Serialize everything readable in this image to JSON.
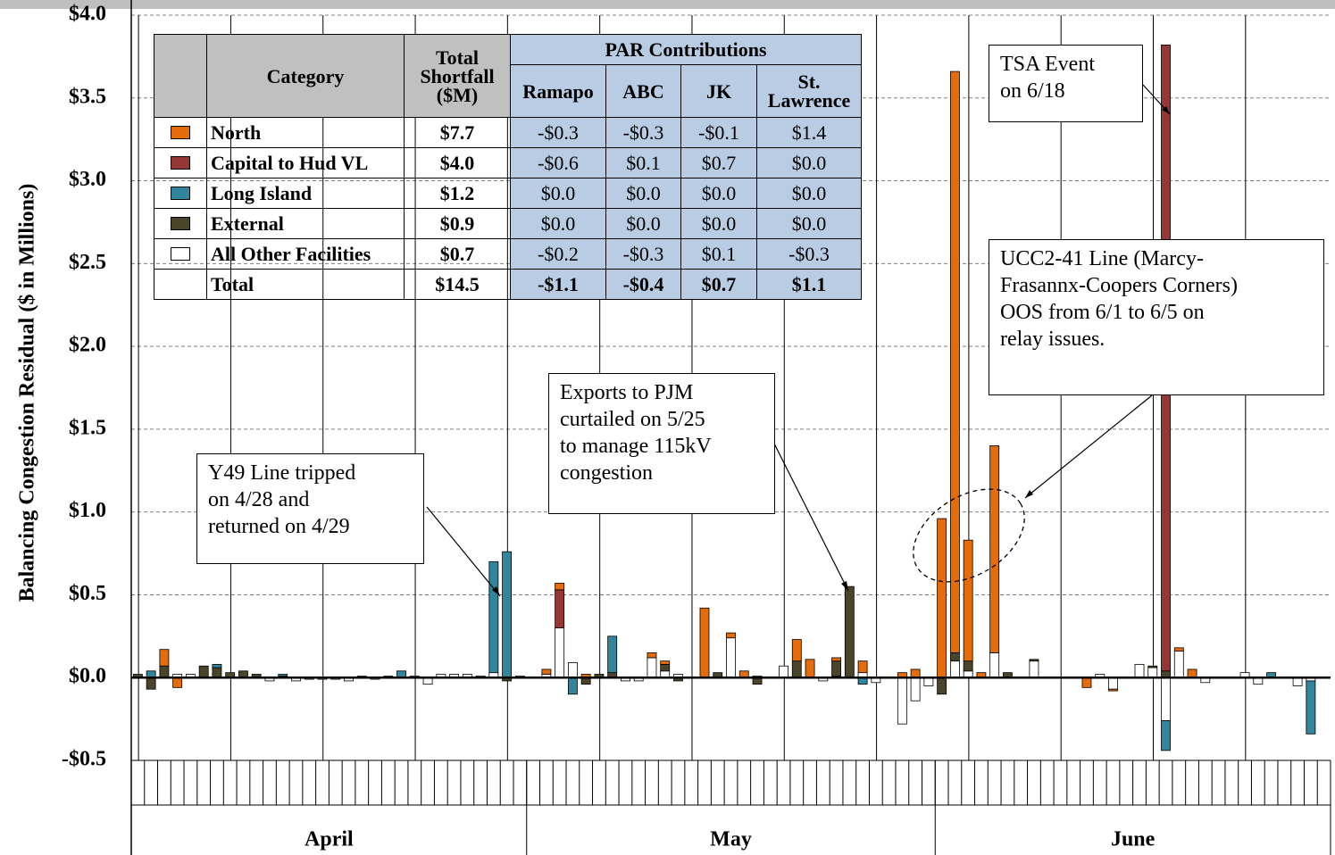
{
  "chart_data": {
    "type": "stacked_bar",
    "y_label": "Balancing Congestion Residual ($ in Millions)",
    "categories": [
      null,
      null,
      null,
      null,
      null,
      null,
      null,
      null,
      null,
      null,
      null,
      null,
      null,
      null,
      null,
      null,
      null,
      null,
      null,
      null,
      null,
      null,
      null,
      null,
      null,
      null,
      null,
      null,
      null,
      null,
      null,
      null,
      null,
      null,
      null,
      null,
      null,
      null,
      null,
      null,
      null,
      null,
      null,
      null,
      null,
      null,
      null,
      null,
      null,
      null,
      null,
      null,
      null,
      null,
      null,
      null,
      null,
      null,
      null,
      null,
      null,
      null,
      null,
      null,
      null,
      null,
      null,
      null,
      null,
      null,
      null,
      null,
      null,
      null,
      null,
      null,
      null,
      null,
      null,
      null,
      null,
      null,
      null,
      null,
      null,
      null,
      null,
      null,
      null,
      null,
      null
    ],
    "x_groups": [
      {
        "label": "April",
        "count": 30
      },
      {
        "label": "May",
        "count": 31
      },
      {
        "label": "June",
        "count": 30
      }
    ],
    "ylim": [
      -0.5,
      4.0
    ],
    "yticks": [
      {
        "value": -0.5,
        "label": "-$0.5"
      },
      {
        "value": 0,
        "label": "$0.0"
      },
      {
        "value": 0.5,
        "label": "$0.5"
      },
      {
        "value": 1.0,
        "label": "$1.0"
      },
      {
        "value": 1.5,
        "label": "$1.5"
      },
      {
        "value": 2.0,
        "label": "$2.0"
      },
      {
        "value": 2.5,
        "label": "$2.5"
      },
      {
        "value": 3.0,
        "label": "$3.0"
      },
      {
        "value": 3.5,
        "label": "$3.5"
      },
      {
        "value": 4.0,
        "label": "$4.0"
      }
    ],
    "grid": true,
    "series": [
      {
        "name": "North",
        "color": "#e46c0a",
        "values": [
          0,
          0,
          0.1,
          -0.06,
          0,
          0,
          0,
          0,
          0,
          0,
          0,
          0,
          0,
          0,
          0,
          0,
          0,
          0,
          0,
          0,
          0,
          0,
          0,
          0,
          0,
          0,
          0,
          0,
          0,
          0,
          0,
          0.03,
          0.04,
          0,
          0.02,
          0,
          0,
          0,
          0,
          0.03,
          0.02,
          0,
          0,
          0.42,
          0,
          0.03,
          0.04,
          0,
          0,
          0,
          0.13,
          0.11,
          0,
          0.02,
          0,
          0.07,
          0,
          0,
          0.03,
          0.05,
          0,
          0.96,
          3.51,
          0.73,
          0.03,
          1.25,
          0,
          0,
          0,
          0,
          0,
          0,
          -0.06,
          0,
          -0.01,
          0,
          0,
          0,
          0,
          0.02,
          0.05,
          0,
          0,
          0,
          0,
          0,
          0,
          0,
          0,
          0,
          0
        ]
      },
      {
        "name": "Capital to Hud VL",
        "color": "#953735",
        "values": [
          0,
          0,
          0,
          0,
          0,
          0,
          0,
          0,
          0,
          0,
          0,
          0,
          0,
          0,
          0,
          0,
          0,
          0,
          0,
          0,
          0,
          0,
          0,
          0,
          0,
          0,
          0,
          0,
          0,
          0,
          0,
          0,
          0.23,
          0,
          0,
          0,
          0,
          0,
          0,
          0,
          0,
          0,
          0,
          0,
          0,
          0,
          0,
          0,
          0,
          0,
          0,
          0,
          0,
          0,
          0,
          0,
          0,
          0,
          0,
          0,
          0,
          0,
          0,
          0,
          0,
          0,
          0,
          0,
          0,
          0,
          0,
          0,
          0,
          0,
          0,
          0,
          0,
          0,
          3.78,
          0,
          0,
          0,
          0,
          0,
          0,
          0,
          0,
          0,
          0,
          0,
          0
        ]
      },
      {
        "name": "Long Island",
        "color": "#31859c",
        "values": [
          0,
          0.04,
          0,
          0,
          0,
          0,
          0.02,
          0,
          0,
          0,
          0,
          0.01,
          0,
          0,
          0,
          0,
          0,
          0,
          0,
          0,
          0.04,
          0,
          0,
          0,
          0,
          0,
          0,
          0.67,
          0.76,
          0,
          0,
          0,
          0,
          -0.1,
          0,
          0,
          0.22,
          0,
          0,
          0,
          0,
          0,
          0,
          0,
          0,
          0,
          0,
          0,
          0,
          0,
          0,
          0,
          0,
          0,
          0,
          -0.04,
          0,
          0,
          0,
          0,
          0,
          0,
          0,
          0,
          0,
          0,
          0,
          0,
          0,
          0,
          0,
          0,
          0,
          0,
          0,
          0,
          0,
          0,
          -0.18,
          0,
          0,
          0,
          0,
          0,
          0,
          0,
          0.03,
          0,
          0,
          -0.32,
          0
        ]
      },
      {
        "name": "External",
        "color": "#4a452a",
        "values": [
          0.02,
          -0.07,
          0.07,
          0,
          0,
          0.07,
          0.06,
          0.03,
          0.04,
          0.02,
          0,
          0,
          0,
          0,
          0,
          0,
          0,
          0,
          0,
          0,
          0,
          0,
          0,
          0,
          0,
          0,
          0,
          0,
          -0.02,
          0,
          0,
          0,
          0,
          0,
          -0.04,
          0.02,
          0.03,
          0,
          0,
          0,
          0.04,
          -0.02,
          0,
          0,
          0.03,
          0,
          0,
          -0.04,
          0,
          0,
          0.1,
          0,
          0,
          0.09,
          0.55,
          0,
          0,
          0,
          0,
          0,
          0,
          -0.1,
          0.05,
          0.06,
          0,
          0,
          0.03,
          0,
          0.01,
          0,
          0,
          0,
          0,
          0,
          0,
          0,
          0,
          0.01,
          0.04,
          0,
          0,
          0,
          0,
          0,
          0,
          0,
          0,
          0,
          0,
          0,
          0
        ]
      },
      {
        "name": "All Other Facilities",
        "color": "#ffffff",
        "values": [
          0,
          0,
          0,
          0.02,
          0.02,
          0,
          0,
          0,
          0,
          0,
          -0.02,
          0.01,
          -0.02,
          -0.01,
          -0.01,
          -0.01,
          -0.02,
          0.01,
          -0.01,
          0.01,
          0,
          0.01,
          -0.04,
          0.02,
          0.02,
          0.02,
          0.01,
          0.03,
          0,
          0.01,
          0,
          0.02,
          0.3,
          0.09,
          0,
          0,
          0,
          -0.02,
          -0.02,
          0.12,
          0.04,
          0.02,
          0,
          0,
          0,
          0.24,
          0,
          0.01,
          0,
          0.07,
          0,
          0,
          -0.02,
          0.01,
          0,
          0.03,
          -0.03,
          0,
          -0.28,
          -0.14,
          -0.05,
          0,
          0.1,
          0.04,
          0,
          0.15,
          0,
          0,
          0.1,
          0,
          0,
          0,
          0,
          0.02,
          -0.07,
          0,
          0.08,
          0.06,
          -0.26,
          0.16,
          0,
          -0.03,
          0,
          0,
          0.03,
          -0.04,
          0,
          0,
          -0.05,
          -0.02,
          0
        ]
      }
    ],
    "table": {
      "headers": [
        "Category",
        "Total Shortfall ($M)"
      ],
      "group_header": "PAR Contributions",
      "par_columns": [
        "Ramapo",
        "ABC",
        "JK",
        "St. Lawrence"
      ],
      "rows": [
        {
          "total": "$7.7",
          "par": [
            "-$0.3",
            "-$0.3",
            "-$0.1",
            "$1.4"
          ]
        },
        {
          "total": "$4.0",
          "par": [
            "-$0.6",
            "$0.1",
            "$0.7",
            "$0.0"
          ]
        },
        {
          "total": "$1.2",
          "par": [
            "$0.0",
            "$0.0",
            "$0.0",
            "$0.0"
          ]
        },
        {
          "total": "$0.9",
          "par": [
            "$0.0",
            "$0.0",
            "$0.0",
            "$0.0"
          ]
        },
        {
          "total": "$0.7",
          "par": [
            "-$0.2",
            "-$0.3",
            "$0.1",
            "-$0.3"
          ]
        }
      ],
      "total_row": {
        "label": "Total",
        "total": "$14.5",
        "par": [
          "-$1.1",
          "-$0.4",
          "$0.7",
          "$1.1"
        ]
      }
    },
    "annotations": [
      "Y49 Line tripped\non 4/28 and\nreturned on 4/29",
      "Exports to PJM\ncurtailed on 5/25\nto manage 115kV\ncongestion",
      "TSA Event\non 6/18",
      "UCC2-41 Line (Marcy-\nFrasannx-Coopers Corners)\nOOS from 6/1 to 6/5 on\nrelay issues."
    ]
  }
}
